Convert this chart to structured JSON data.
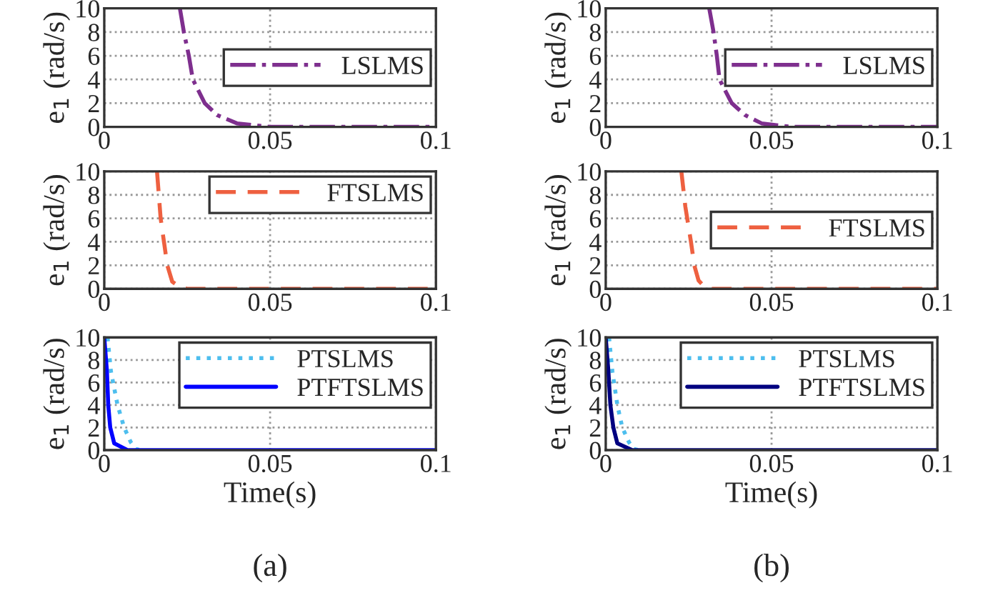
{
  "chart_data": [
    {
      "type": "line",
      "ylabel": "e$_{1}$ (rad/s)",
      "xlim": [
        0,
        0.1
      ],
      "ylim": [
        0,
        10
      ],
      "xticks": [
        0,
        0.05,
        0.1
      ],
      "yticks": [
        0,
        2,
        4,
        6,
        8,
        10
      ],
      "grid": true,
      "legend": "right",
      "series": [
        {
          "name": "LSLMS",
          "color": "#7e2f8e",
          "line_style": "dashdot",
          "x": [
            0.0228,
            0.024,
            0.0255,
            0.0267,
            0.0303,
            0.034,
            0.04,
            0.05,
            0.1
          ],
          "values": [
            10,
            8,
            6,
            4,
            2,
            1,
            0.3,
            0,
            0
          ]
        }
      ]
    },
    {
      "type": "line",
      "ylabel": "e$_{1}$ (rad/s)",
      "xlim": [
        0,
        0.1
      ],
      "ylim": [
        0,
        10
      ],
      "xticks": [
        0,
        0.05,
        0.1
      ],
      "yticks": [
        0,
        2,
        4,
        6,
        8,
        10
      ],
      "grid": true,
      "legend": "right",
      "series": [
        {
          "name": "LSLMS",
          "color": "#7e2f8e",
          "line_style": "dashdot",
          "x": [
            0.0312,
            0.0325,
            0.0335,
            0.0343,
            0.038,
            0.042,
            0.047,
            0.056,
            0.1
          ],
          "values": [
            10,
            8,
            6,
            4,
            2,
            1,
            0.3,
            0,
            0
          ]
        }
      ]
    },
    {
      "type": "line",
      "ylabel": "e$_{1}$ (rad/s)",
      "xlim": [
        0,
        0.1
      ],
      "ylim": [
        0,
        10
      ],
      "xticks": [
        0,
        0.05,
        0.1
      ],
      "yticks": [
        0,
        2,
        4,
        6,
        8,
        10
      ],
      "grid": true,
      "legend": "top right",
      "series": [
        {
          "name": "FTSLMS",
          "color": "#ee6040",
          "line_style": "dashed",
          "x": [
            0.0159,
            0.017,
            0.018,
            0.019,
            0.0205,
            0.023,
            0.025,
            0.1
          ],
          "values": [
            10,
            6,
            4,
            2,
            0.6,
            0.1,
            0,
            0
          ]
        }
      ]
    },
    {
      "type": "line",
      "ylabel": "e$_{1}$ (rad/s)",
      "xlim": [
        0,
        0.1
      ],
      "ylim": [
        0,
        10
      ],
      "xticks": [
        0,
        0.05,
        0.1
      ],
      "yticks": [
        0,
        2,
        4,
        6,
        8,
        10
      ],
      "grid": true,
      "legend": "right",
      "series": [
        {
          "name": "FTSLMS",
          "color": "#ee6040",
          "line_style": "dashed",
          "x": [
            0.0228,
            0.024,
            0.0257,
            0.0267,
            0.028,
            0.03,
            0.032,
            0.1
          ],
          "values": [
            10,
            7,
            4,
            2,
            0.7,
            0.1,
            0,
            0
          ]
        }
      ]
    },
    {
      "type": "line",
      "ylabel": "e$_{1}$ (rad/s)",
      "xlabel": "Time(s)",
      "annotations": [
        "(a)"
      ],
      "xlim": [
        0,
        0.1
      ],
      "ylim": [
        0,
        10
      ],
      "xticks": [
        0,
        0.05,
        0.1
      ],
      "yticks": [
        0,
        2,
        4,
        6,
        8,
        10
      ],
      "grid": true,
      "legend": "top right",
      "series": [
        {
          "name": "PTSLMS",
          "color": "#4dbeee",
          "line_style": "dotted",
          "x": [
            0.001,
            0.002,
            0.004,
            0.006,
            0.008,
            0.0095,
            0.011
          ],
          "values": [
            10,
            7,
            4,
            2,
            0.7,
            0.1,
            0
          ]
        },
        {
          "name": "PTFTSLMS",
          "color": "#0000ff",
          "line_style": "solid",
          "x": [
            0,
            0.0008,
            0.0012,
            0.0018,
            0.003,
            0.007,
            0.1
          ],
          "values": [
            10,
            7,
            4,
            2,
            0.6,
            0,
            0
          ]
        }
      ]
    },
    {
      "type": "line",
      "ylabel": "e$_{1}$ (rad/s)",
      "xlabel": "Time(s)",
      "annotations": [
        "(b)"
      ],
      "xlim": [
        0,
        0.1
      ],
      "ylim": [
        0,
        10
      ],
      "xticks": [
        0,
        0.05,
        0.1
      ],
      "yticks": [
        0,
        2,
        4,
        6,
        8,
        10
      ],
      "grid": true,
      "legend": "top right",
      "series": [
        {
          "name": "PTSLMS",
          "color": "#4dbeee",
          "line_style": "dotted",
          "x": [
            0.001,
            0.002,
            0.0035,
            0.005,
            0.007,
            0.0085,
            0.01
          ],
          "values": [
            10,
            7,
            4,
            2,
            0.7,
            0.1,
            0
          ]
        },
        {
          "name": "PTFTSLMS",
          "color": "#000080",
          "line_style": "solid",
          "x": [
            0,
            0.0008,
            0.0014,
            0.0023,
            0.0035,
            0.008,
            0.1
          ],
          "values": [
            10,
            7,
            4,
            2,
            0.6,
            0,
            0
          ]
        }
      ]
    }
  ]
}
